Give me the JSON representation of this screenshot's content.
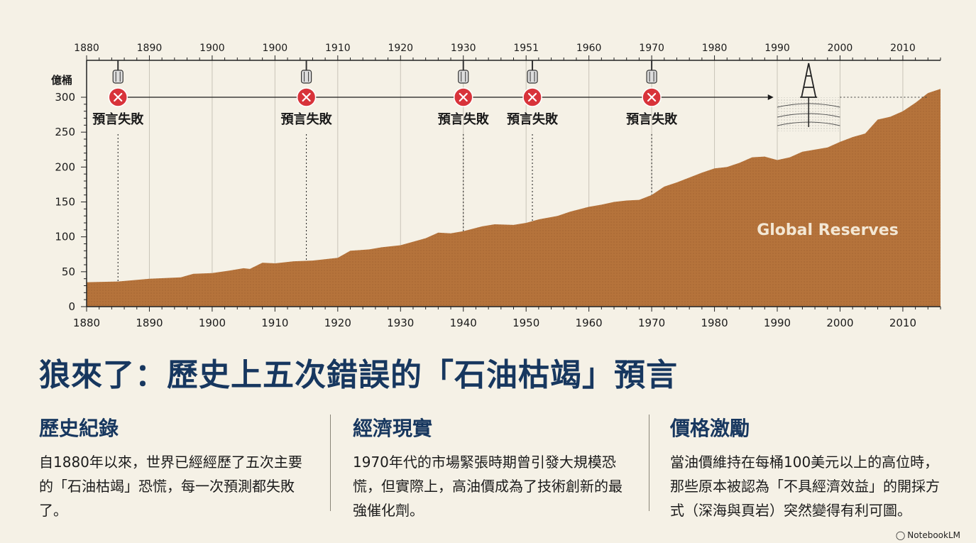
{
  "chart_data": {
    "type": "area",
    "top_ticks": [
      "1880",
      "1890",
      "1900",
      "1900",
      "1910",
      "1920",
      "1930",
      "1951",
      "1960",
      "1970",
      "1980",
      "1990",
      "2000",
      "2010"
    ],
    "bottom_ticks": [
      "1880",
      "1890",
      "1900",
      "1910",
      "1920",
      "1930",
      "1940",
      "1950",
      "1960",
      "1970",
      "1980",
      "1990",
      "2000",
      "2010"
    ],
    "ylabel": "億桶",
    "yticks": [
      0,
      50,
      100,
      150,
      200,
      250,
      300
    ],
    "ylim": [
      0,
      300
    ],
    "xlim": [
      1880,
      2016
    ],
    "series_label": "Global Reserves",
    "series": [
      {
        "x": [
          1880,
          1885,
          1890,
          1895,
          1897,
          1900,
          1903,
          1905,
          1906,
          1908,
          1910,
          1913,
          1916,
          1920,
          1922,
          1925,
          1927,
          1930,
          1934,
          1936,
          1938,
          1940,
          1943,
          1945,
          1948,
          1950,
          1952,
          1955,
          1957,
          1960,
          1962,
          1964,
          1966,
          1968,
          1970,
          1972,
          1974,
          1976,
          1978,
          1980,
          1982,
          1984,
          1986,
          1988,
          1990,
          1992,
          1994,
          1996,
          1998,
          2000,
          2002,
          2004,
          2006,
          2008,
          2010,
          2012,
          2014,
          2016
        ],
        "y": [
          35,
          36,
          40,
          42,
          47,
          48,
          52,
          55,
          54,
          63,
          62,
          65,
          66,
          70,
          80,
          82,
          85,
          88,
          98,
          106,
          105,
          108,
          115,
          118,
          117,
          120,
          125,
          130,
          136,
          143,
          146,
          150,
          152,
          153,
          160,
          172,
          178,
          185,
          192,
          198,
          200,
          206,
          214,
          215,
          210,
          214,
          222,
          225,
          228,
          236,
          243,
          248,
          268,
          272,
          280,
          292,
          306,
          312
        ]
      }
    ],
    "predictions": [
      {
        "year": 1885,
        "label": "預言失敗"
      },
      {
        "year": 1915,
        "label": "預言失敗"
      },
      {
        "year": 1940,
        "label": "預言失敗"
      },
      {
        "year": 1951,
        "label": "預言失敗"
      },
      {
        "year": 1970,
        "label": "預言失敗"
      }
    ],
    "colors": {
      "area": "#b5733b",
      "area_dark": "#8f5526",
      "fail_marker": "#d8333a",
      "axis": "#222222",
      "grid": "#c9c4b8",
      "background": "#f5f1e6"
    }
  },
  "title": "狼來了：歷史上五次錯誤的「石油枯竭」預言",
  "columns": [
    {
      "heading": "歷史紀錄",
      "body": "自1880年以來，世界已經經歷了五次主要的「石油枯竭」恐慌，每一次預測都失敗了。"
    },
    {
      "heading": "經濟現實",
      "body": "1970年代的市場緊張時期曾引發大規模恐慌，但實際上，高油價成為了技術創新的最強催化劑。"
    },
    {
      "heading": "價格激勵",
      "body": "當油價維持在每桶100美元以上的高位時，那些原本被認為「不具經濟效益」的開採方式（深海與頁岩）突然變得有利可圖。"
    }
  ],
  "brand": "NotebookLM",
  "icons": {
    "fail": "x-circle-icon",
    "drill": "drill-bit-icon",
    "rig": "oil-rig-icon",
    "brand": "notebooklm-icon"
  }
}
